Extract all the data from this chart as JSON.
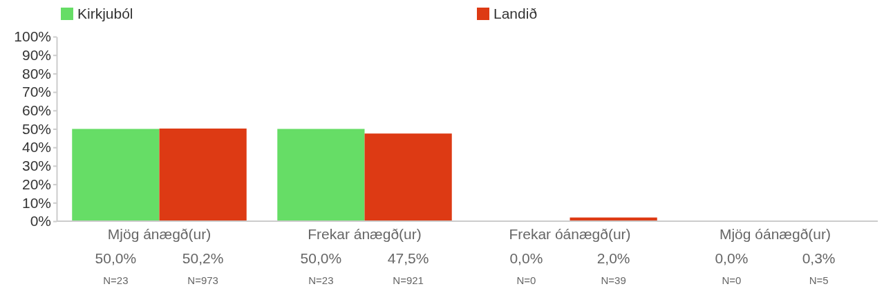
{
  "chart_data": {
    "type": "bar",
    "categories": [
      "Mjög ánægð(ur)",
      "Frekar ánægð(ur)",
      "Frekar óánægð(ur)",
      "Mjög óánægð(ur)"
    ],
    "series": [
      {
        "name": "Kirkjuból",
        "color": "#66dd66",
        "values": [
          50.0,
          50.0,
          0.0,
          0.0
        ],
        "value_labels": [
          "50,0%",
          "50,0%",
          "0,0%",
          "0,0%"
        ]
      },
      {
        "name": "Landið",
        "color": "#dd3a14",
        "values": [
          50.2,
          47.5,
          2.0,
          0.3
        ],
        "value_labels": [
          "50,2%",
          "47,5%",
          "2,0%",
          "0,3%"
        ]
      }
    ],
    "annotations": [
      "N=23",
      "N=973",
      "N=23",
      "N=921",
      "N=0",
      "N=39",
      "N=0",
      "N=5"
    ],
    "ylim": [
      0,
      100
    ],
    "yticks": [
      {
        "value": 0,
        "label": "0%"
      },
      {
        "value": 10,
        "label": "10%"
      },
      {
        "value": 20,
        "label": "20%"
      },
      {
        "value": 30,
        "label": "30%"
      },
      {
        "value": 40,
        "label": "40%"
      },
      {
        "value": 50,
        "label": "50%"
      },
      {
        "value": 60,
        "label": "60%"
      },
      {
        "value": 70,
        "label": "70%"
      },
      {
        "value": 80,
        "label": "80%"
      },
      {
        "value": 90,
        "label": "90%"
      },
      {
        "value": 100,
        "label": "100%"
      }
    ],
    "grid": false,
    "legend": "top"
  }
}
